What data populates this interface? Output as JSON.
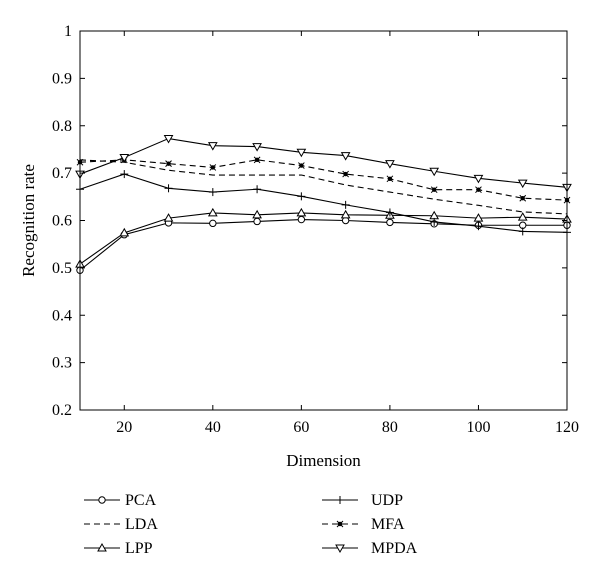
{
  "chart_data": {
    "type": "line",
    "title": "",
    "xlabel": "Dimension",
    "ylabel": "Recognition rate",
    "xlim": [
      10,
      120
    ],
    "ylim": [
      0.2,
      1
    ],
    "xticks": [
      20,
      40,
      60,
      80,
      100,
      120
    ],
    "yticks": [
      0.2,
      0.3,
      0.4,
      0.5,
      0.6,
      0.7,
      0.8,
      0.9,
      1
    ],
    "ytick_labels": [
      "0.2",
      "0.3",
      "0.4",
      "0.5",
      "0.6",
      "0.7",
      "0.8",
      "0.9",
      "1"
    ],
    "grid": false,
    "legend_position": "bottom",
    "x": [
      10,
      20,
      30,
      40,
      50,
      60,
      70,
      80,
      90,
      100,
      110,
      120
    ],
    "series": [
      {
        "name": "PCA",
        "dash": "solid",
        "marker": "circle",
        "values": [
          0.495,
          0.57,
          0.595,
          0.594,
          0.598,
          0.602,
          0.6,
          0.596,
          0.593,
          0.59,
          0.59,
          0.59
        ]
      },
      {
        "name": "LDA",
        "dash": "dashed",
        "marker": "none",
        "values": [
          0.728,
          0.723,
          0.706,
          0.696,
          0.696,
          0.696,
          0.675,
          0.66,
          0.645,
          0.632,
          0.618,
          0.614
        ]
      },
      {
        "name": "LPP",
        "dash": "solid",
        "marker": "triangle-up",
        "values": [
          0.508,
          0.574,
          0.605,
          0.616,
          0.612,
          0.616,
          0.612,
          0.611,
          0.61,
          0.605,
          0.607,
          0.603
        ]
      },
      {
        "name": "UDP",
        "dash": "solid",
        "marker": "plus",
        "values": [
          0.666,
          0.698,
          0.668,
          0.66,
          0.666,
          0.651,
          0.633,
          0.617,
          0.597,
          0.588,
          0.577,
          0.575
        ]
      },
      {
        "name": "MFA",
        "dash": "dashed",
        "marker": "asterisk",
        "values": [
          0.723,
          0.728,
          0.72,
          0.712,
          0.728,
          0.716,
          0.698,
          0.688,
          0.665,
          0.665,
          0.647,
          0.643
        ]
      },
      {
        "name": "MPDA",
        "dash": "solid",
        "marker": "triangle-down",
        "values": [
          0.698,
          0.733,
          0.773,
          0.758,
          0.756,
          0.744,
          0.737,
          0.72,
          0.704,
          0.689,
          0.679,
          0.67
        ]
      }
    ]
  }
}
